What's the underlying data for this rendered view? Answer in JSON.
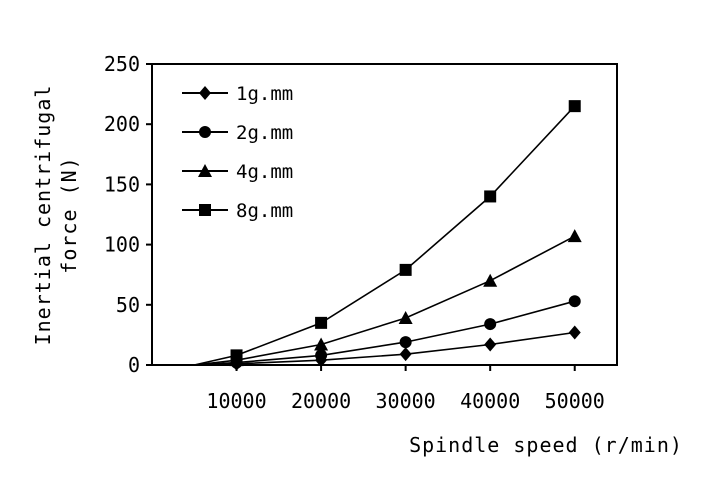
{
  "chart_data": {
    "type": "line",
    "title": "",
    "xlabel": "Spindle speed (r/min)",
    "ylabel_lines": [
      "Inertial centrifugal",
      "force (N)"
    ],
    "xlim": [
      0,
      55000
    ],
    "ylim": [
      0,
      250
    ],
    "xticks": [
      10000,
      20000,
      30000,
      40000,
      50000
    ],
    "yticks": [
      0,
      50,
      100,
      150,
      200,
      250
    ],
    "grid": false,
    "legend_position": "top-left",
    "line_color": "#000000",
    "series": [
      {
        "name": "1g.mm",
        "marker": "diamond",
        "x": [
          5000,
          10000,
          20000,
          30000,
          40000,
          50000
        ],
        "y": [
          0,
          1,
          4,
          9,
          17,
          27
        ]
      },
      {
        "name": "2g.mm",
        "marker": "circle",
        "x": [
          5000,
          10000,
          20000,
          30000,
          40000,
          50000
        ],
        "y": [
          0,
          2,
          8,
          19,
          34,
          53
        ]
      },
      {
        "name": "4g.mm",
        "marker": "triangle",
        "x": [
          5000,
          10000,
          20000,
          30000,
          40000,
          50000
        ],
        "y": [
          0,
          4,
          17,
          39,
          70,
          107
        ]
      },
      {
        "name": "8g.mm",
        "marker": "square",
        "x": [
          5000,
          10000,
          20000,
          30000,
          40000,
          50000
        ],
        "y": [
          0,
          8,
          35,
          79,
          140,
          215
        ]
      }
    ]
  }
}
